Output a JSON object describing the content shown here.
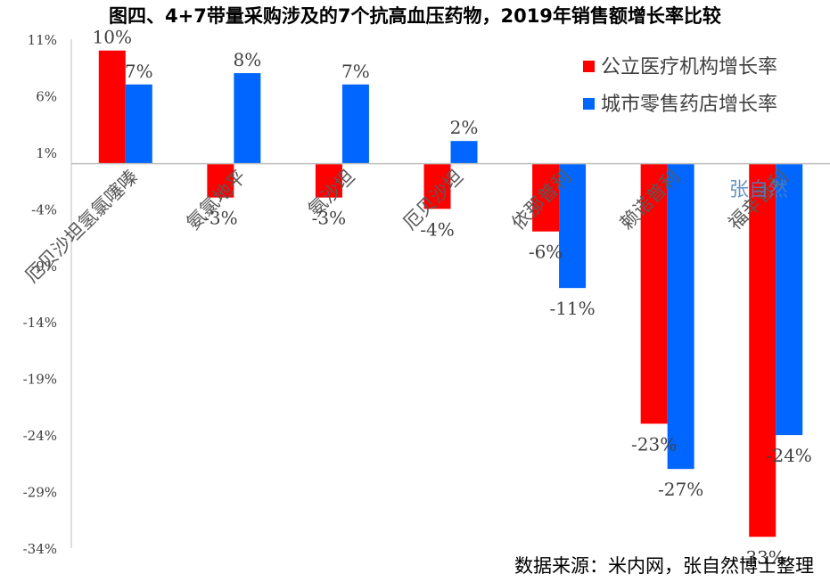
{
  "title": "图四、4+7带量采购涉及的7个抗高血压药物，2019年销售额增长率比较",
  "source": "数据来源：米内网，张自然博士整理",
  "watermark": "张自然",
  "chart_data": {
    "type": "bar",
    "categories": [
      "厄贝沙坦氢氯噻嗪",
      "氨氯地平",
      "氨沙坦",
      "厄贝沙坦",
      "依那普利",
      "赖诺普利",
      "福辛普利"
    ],
    "series": [
      {
        "name": "公立医疗机构增长率",
        "color": "#ff0000",
        "values": [
          10,
          -3,
          -3,
          -4,
          -6,
          -23,
          -33
        ],
        "labels": [
          "10%",
          "-3%",
          "-3%",
          "-4%",
          "-6%",
          "-23%",
          "-33%"
        ]
      },
      {
        "name": "城市零售药店增长率",
        "color": "#0066ff",
        "values": [
          7,
          8,
          7,
          2,
          -11,
          -27,
          -24
        ],
        "labels": [
          "7%",
          "8%",
          "7%",
          "2%",
          "-11%",
          "-27%",
          "-24%"
        ]
      }
    ],
    "yticks": [
      11,
      6,
      1,
      -4,
      -9,
      -14,
      -19,
      -24,
      -29,
      -34
    ],
    "ytick_labels": [
      "11%",
      "6%",
      "1%",
      "-4%",
      "-9%",
      "-14%",
      "-19%",
      "-24%",
      "-29%",
      "-34%"
    ],
    "ylim": [
      -34,
      11
    ],
    "grid": false,
    "legend_position": "top-right"
  }
}
